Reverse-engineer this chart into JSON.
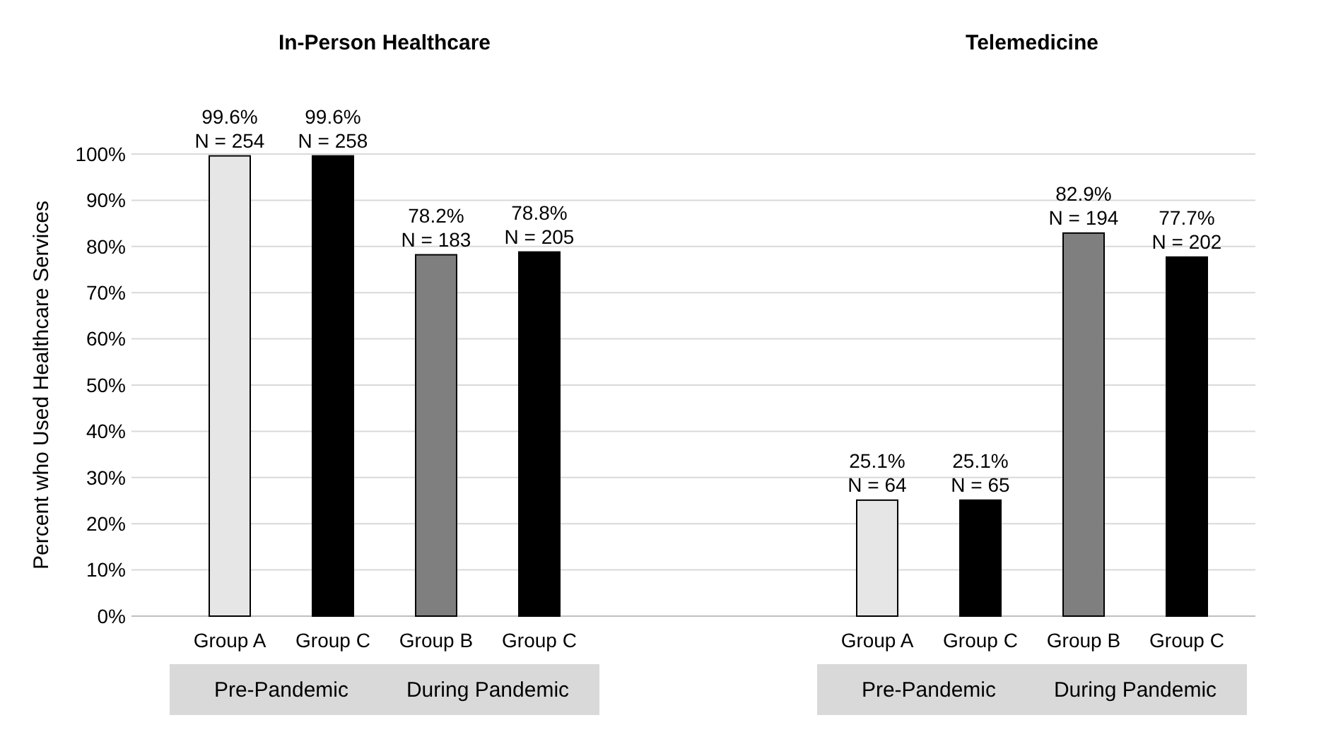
{
  "chart_data": [
    {
      "type": "bar",
      "title": "In-Person Healthcare",
      "ylabel": "Percent who Used Healthcare Services",
      "categories": [
        "Group A",
        "Group C",
        "Group B",
        "Group C"
      ],
      "values": [
        99.6,
        99.6,
        78.2,
        78.8
      ],
      "colors": [
        "#e6e6e6",
        "#000000",
        "#7f7f7f",
        "#000000"
      ],
      "value_labels": [
        "99.6%\nN = 254",
        "99.6%\nN = 258",
        "78.2%\nN = 183",
        "78.8%\nN = 205"
      ],
      "ylim": [
        0,
        100
      ],
      "yticks": [
        {
          "value": 0,
          "label": "0%"
        },
        {
          "value": 10,
          "label": "10%"
        },
        {
          "value": 20,
          "label": "20%"
        },
        {
          "value": 30,
          "label": "30%"
        },
        {
          "value": 40,
          "label": "40%"
        },
        {
          "value": 50,
          "label": "50%"
        },
        {
          "value": 60,
          "label": "60%"
        },
        {
          "value": 70,
          "label": "70%"
        },
        {
          "value": 80,
          "label": "80%"
        },
        {
          "value": 90,
          "label": "90%"
        },
        {
          "value": 100,
          "label": "100%"
        }
      ],
      "grid": "y",
      "annotations": [
        "Pre-Pandemic",
        "During Pandemic"
      ]
    },
    {
      "type": "bar",
      "title": "Telemedicine",
      "categories": [
        "Group A",
        "Group C",
        "Group B",
        "Group C"
      ],
      "values": [
        25.1,
        25.1,
        82.9,
        77.7
      ],
      "colors": [
        "#e6e6e6",
        "#000000",
        "#7f7f7f",
        "#000000"
      ],
      "value_labels": [
        "25.1%\nN = 64",
        "25.1%\nN = 65",
        "82.9%\nN = 194",
        "77.7%\nN = 202"
      ],
      "ylim": [
        0,
        100
      ],
      "yticks": [
        0,
        10,
        20,
        30,
        40,
        50,
        60,
        70,
        80,
        90,
        100
      ],
      "grid": "y",
      "tick_labels": "x",
      "annotations": [
        "Pre-Pandemic",
        "During Pandemic"
      ]
    }
  ]
}
